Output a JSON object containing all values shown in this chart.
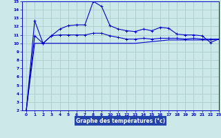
{
  "title": "Graphe des températures (°c)",
  "background_color": "#cce8e8",
  "grid_color": "#aacccc",
  "line_color": "#0000cc",
  "label_bg_color": "#2244aa",
  "xlim": [
    -0.5,
    23
  ],
  "ylim": [
    2,
    15
  ],
  "xticks": [
    0,
    1,
    2,
    3,
    4,
    5,
    6,
    7,
    8,
    9,
    10,
    11,
    12,
    13,
    14,
    15,
    16,
    17,
    18,
    19,
    20,
    21,
    22,
    23
  ],
  "yticks": [
    2,
    3,
    4,
    5,
    6,
    7,
    8,
    9,
    10,
    11,
    12,
    13,
    14,
    15
  ],
  "series1_x": [
    0,
    1,
    2,
    3,
    4,
    5,
    6,
    7,
    8,
    9,
    10,
    11,
    12,
    13,
    14,
    15,
    16,
    17,
    18,
    19,
    20,
    21,
    22,
    23
  ],
  "series1_y": [
    2.0,
    12.7,
    10.0,
    10.9,
    11.7,
    12.1,
    12.2,
    12.2,
    15.0,
    14.4,
    12.1,
    11.7,
    11.5,
    11.4,
    11.7,
    11.5,
    11.9,
    11.8,
    11.1,
    11.0,
    11.0,
    10.9,
    10.1,
    10.5
  ],
  "series2_x": [
    0,
    1,
    2,
    3,
    4,
    5,
    6,
    7,
    8,
    9,
    10,
    11,
    12,
    13,
    14,
    15,
    16,
    17,
    18,
    19,
    20,
    21,
    22,
    23
  ],
  "series2_y": [
    2.0,
    10.9,
    10.0,
    10.9,
    11.0,
    11.0,
    11.0,
    11.0,
    11.2,
    11.2,
    10.9,
    10.7,
    10.5,
    10.5,
    10.6,
    10.5,
    10.6,
    10.6,
    10.6,
    10.5,
    10.6,
    10.5,
    10.5,
    10.5
  ],
  "series3_x": [
    0,
    1,
    2,
    3,
    4,
    5,
    6,
    7,
    8,
    9,
    10,
    11,
    12,
    13,
    14,
    15,
    16,
    17,
    18,
    19,
    20,
    21,
    22,
    23
  ],
  "series3_y": [
    2.0,
    10.0,
    10.0,
    10.0,
    10.0,
    10.0,
    10.0,
    10.0,
    10.0,
    10.0,
    10.0,
    10.0,
    10.0,
    10.0,
    10.1,
    10.2,
    10.3,
    10.4,
    10.4,
    10.4,
    10.4,
    10.4,
    10.4,
    10.5
  ]
}
